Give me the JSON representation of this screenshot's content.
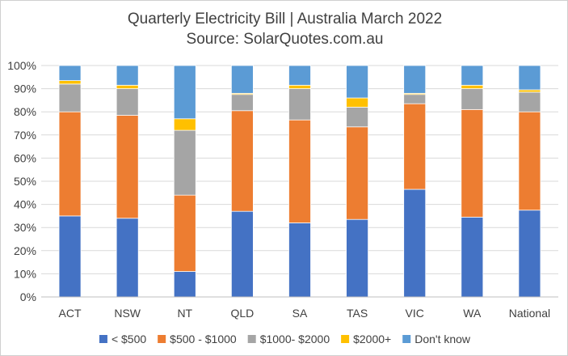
{
  "chart_data": {
    "type": "bar",
    "stacked": true,
    "title": "Quarterly Electricity Bill | Australia March 2022",
    "subtitle": "Source: SolarQuotes.com.au",
    "categories": [
      "ACT",
      "NSW",
      "NT",
      "QLD",
      "SA",
      "TAS",
      "VIC",
      "WA",
      "National"
    ],
    "y_ticks": [
      "0%",
      "10%",
      "20%",
      "30%",
      "40%",
      "50%",
      "60%",
      "70%",
      "80%",
      "90%",
      "100%"
    ],
    "ylim": [
      0,
      100
    ],
    "grid": true,
    "legend_position": "bottom",
    "series": [
      {
        "name": "< $500",
        "color": "#4472C4",
        "values": [
          35,
          34,
          11,
          37,
          32,
          33.5,
          46.5,
          34.5,
          37.5
        ]
      },
      {
        "name": "$500 - $1000",
        "color": "#ED7D31",
        "values": [
          45,
          44.5,
          33,
          43.5,
          44.5,
          40,
          37,
          46.5,
          42.5
        ]
      },
      {
        "name": "$1000- $2000",
        "color": "#A5A5A5",
        "values": [
          12,
          11.5,
          28,
          7,
          13.5,
          8.5,
          4,
          9,
          8.5
        ]
      },
      {
        "name": "$2000+",
        "color": "#FFC000",
        "values": [
          1.5,
          1.5,
          5,
          0.5,
          1.5,
          4,
          0.5,
          1.5,
          1
        ]
      },
      {
        "name": "Don't know",
        "color": "#5B9BD5",
        "values": [
          6.5,
          8.5,
          23,
          12,
          8.5,
          14,
          12,
          8.5,
          10.5
        ]
      }
    ]
  }
}
